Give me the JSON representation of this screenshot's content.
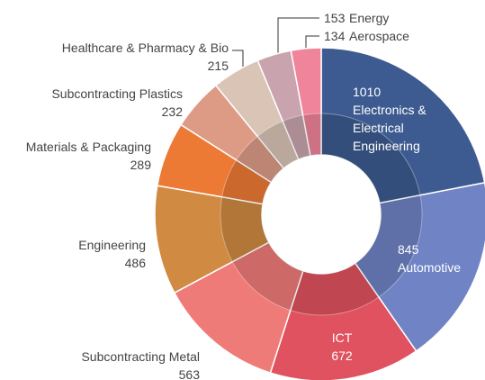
{
  "chart_data": {
    "type": "donut",
    "categories": [
      "Electronics & Electrical Engineering",
      "Automotive",
      "ICT",
      "Subcontracting Metal",
      "Engineering",
      "Materials & Packaging",
      "Subcontracting Plastics",
      "Healthcare & Pharmacy & Bio",
      "Energy",
      "Aerospace"
    ],
    "values": [
      1010,
      845,
      672,
      563,
      486,
      289,
      232,
      215,
      153,
      134
    ],
    "colors": [
      "#3d5b90",
      "#6f83c5",
      "#e0525f",
      "#ef7b78",
      "#d08a42",
      "#ec7a35",
      "#dd9b86",
      "#d9c4b6",
      "#c9a3ae",
      "#f0849b"
    ]
  }
}
